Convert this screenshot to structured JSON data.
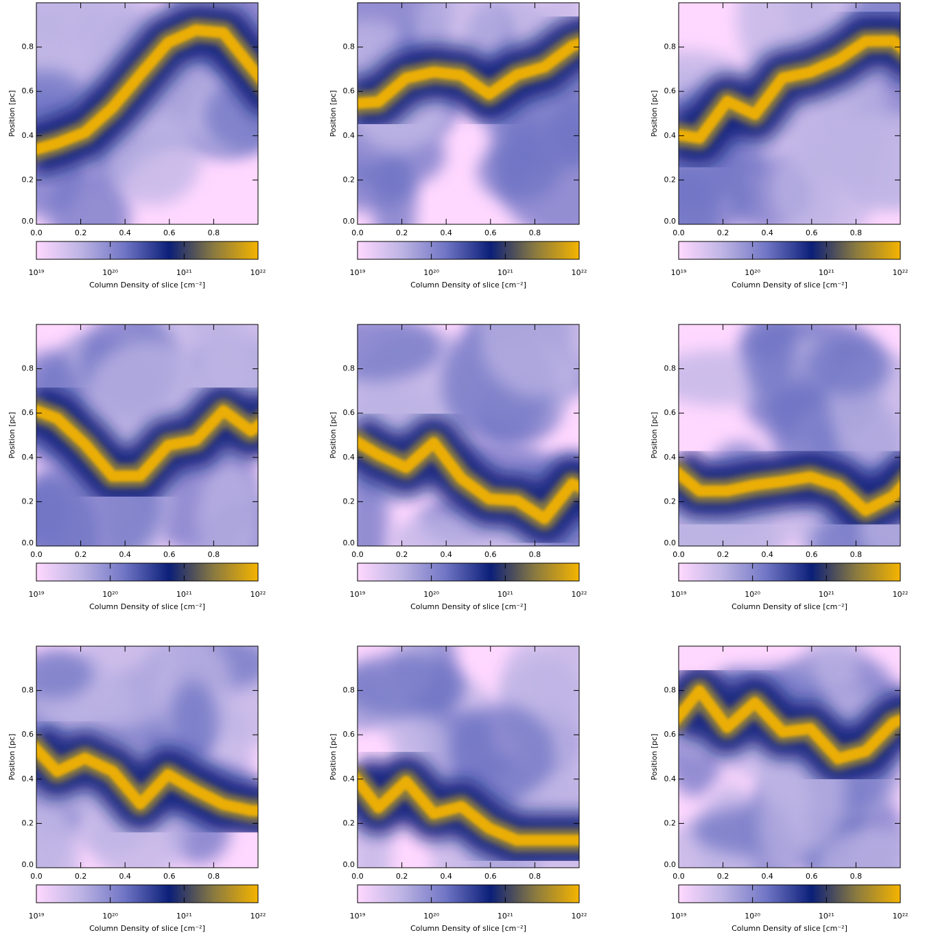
{
  "chart_data": [
    {
      "type": "heatmap",
      "ylabel": "Position [pc]",
      "xlim": [
        0,
        1
      ],
      "ylim": [
        0,
        1
      ],
      "xticks": [
        {
          "value": 0,
          "label": "0.0"
        },
        0.2,
        0.4,
        0.6,
        0.8
      ],
      "yticks": [
        {
          "value": 0,
          "label": "0.0"
        },
        0.2,
        0.4,
        0.6,
        0.8
      ],
      "colorbar": {
        "label": "Column Density of slice [cm⁻²]",
        "log": true,
        "lim": [
          1e+19,
          1e+22
        ],
        "ticks": [
          {
            "value": 1e+19,
            "label": "10¹⁹"
          },
          {
            "value": 1e+20,
            "label": "10²⁰"
          },
          {
            "value": 1e+21,
            "label": "10²¹"
          },
          {
            "value": 1e+22,
            "label": "10²²"
          }
        ],
        "colors": [
          "#ffd8ff",
          "#bdb4e4",
          "#6f74c4",
          "#0b1f78",
          "#8a7a40",
          "#f5b400"
        ]
      }
    },
    {
      "type": "heatmap",
      "ylabel": "Position [pc]",
      "xlim": [
        0,
        1
      ],
      "ylim": [
        0,
        1
      ],
      "xticks": [
        {
          "value": 0,
          "label": "0.0"
        },
        0.2,
        0.4,
        0.6,
        0.8
      ],
      "yticks": [
        {
          "value": 0,
          "label": "0.0"
        },
        0.2,
        0.4,
        0.6,
        0.8
      ],
      "colorbar": {
        "label": "Column Density of slice [cm⁻²]",
        "log": true,
        "lim": [
          1e+19,
          1e+22
        ],
        "ticks": [
          {
            "value": 1e+19,
            "label": "10¹⁹"
          },
          {
            "value": 1e+20,
            "label": "10²⁰"
          },
          {
            "value": 1e+21,
            "label": "10²¹"
          },
          {
            "value": 1e+22,
            "label": "10²²"
          }
        ],
        "colors": [
          "#ffd8ff",
          "#bdb4e4",
          "#6f74c4",
          "#0b1f78",
          "#8a7a40",
          "#f5b400"
        ]
      }
    },
    {
      "type": "heatmap",
      "ylabel": "Position [pc]",
      "xlim": [
        0,
        1
      ],
      "ylim": [
        0,
        1
      ],
      "xticks": [
        {
          "value": 0,
          "label": "0.0"
        },
        0.2,
        0.4,
        0.6,
        0.8
      ],
      "yticks": [
        {
          "value": 0,
          "label": "0.0"
        },
        0.2,
        0.4,
        0.6,
        0.8
      ],
      "colorbar": {
        "label": "Column Density of slice [cm⁻²]",
        "log": true,
        "lim": [
          1e+19,
          1e+22
        ],
        "ticks": [
          {
            "value": 1e+19,
            "label": "10¹⁹"
          },
          {
            "value": 1e+20,
            "label": "10²⁰"
          },
          {
            "value": 1e+21,
            "label": "10²¹"
          },
          {
            "value": 1e+22,
            "label": "10²²"
          }
        ],
        "colors": [
          "#ffd8ff",
          "#bdb4e4",
          "#6f74c4",
          "#0b1f78",
          "#8a7a40",
          "#f5b400"
        ]
      }
    },
    {
      "type": "heatmap",
      "ylabel": "Position [pc]",
      "xlim": [
        0,
        1
      ],
      "ylim": [
        0,
        1
      ],
      "xticks": [
        {
          "value": 0,
          "label": "0.0"
        },
        0.2,
        0.4,
        0.6,
        0.8
      ],
      "yticks": [
        {
          "value": 0,
          "label": "0.0"
        },
        0.2,
        0.4,
        0.6,
        0.8
      ],
      "colorbar": {
        "label": "Column Density of slice [cm⁻²]",
        "log": true,
        "lim": [
          1e+19,
          1e+22
        ],
        "ticks": [
          {
            "value": 1e+19,
            "label": "10¹⁹"
          },
          {
            "value": 1e+20,
            "label": "10²⁰"
          },
          {
            "value": 1e+21,
            "label": "10²¹"
          },
          {
            "value": 1e+22,
            "label": "10²²"
          }
        ],
        "colors": [
          "#ffd8ff",
          "#bdb4e4",
          "#6f74c4",
          "#0b1f78",
          "#8a7a40",
          "#f5b400"
        ]
      }
    },
    {
      "type": "heatmap",
      "ylabel": "Position [pc]",
      "xlim": [
        0,
        1
      ],
      "ylim": [
        0,
        1
      ],
      "xticks": [
        {
          "value": 0,
          "label": "0.0"
        },
        0.2,
        0.4,
        0.6,
        0.8
      ],
      "yticks": [
        {
          "value": 0,
          "label": "0.0"
        },
        0.2,
        0.4,
        0.6,
        0.8
      ],
      "colorbar": {
        "label": "Column Density of slice [cm⁻²]",
        "log": true,
        "lim": [
          1e+19,
          1e+22
        ],
        "ticks": [
          {
            "value": 1e+19,
            "label": "10¹⁹"
          },
          {
            "value": 1e+20,
            "label": "10²⁰"
          },
          {
            "value": 1e+21,
            "label": "10²¹"
          },
          {
            "value": 1e+22,
            "label": "10²²"
          }
        ],
        "colors": [
          "#ffd8ff",
          "#bdb4e4",
          "#6f74c4",
          "#0b1f78",
          "#8a7a40",
          "#f5b400"
        ]
      }
    },
    {
      "type": "heatmap",
      "ylabel": "Position [pc]",
      "xlim": [
        0,
        1
      ],
      "ylim": [
        0,
        1
      ],
      "xticks": [
        {
          "value": 0,
          "label": "0.0"
        },
        0.2,
        0.4,
        0.6,
        0.8
      ],
      "yticks": [
        {
          "value": 0,
          "label": "0.0"
        },
        0.2,
        0.4,
        0.6,
        0.8
      ],
      "colorbar": {
        "label": "Column Density of slice [cm⁻²]",
        "log": true,
        "lim": [
          1e+19,
          1e+22
        ],
        "ticks": [
          {
            "value": 1e+19,
            "label": "10¹⁹"
          },
          {
            "value": 1e+20,
            "label": "10²⁰"
          },
          {
            "value": 1e+21,
            "label": "10²¹"
          },
          {
            "value": 1e+22,
            "label": "10²²"
          }
        ],
        "colors": [
          "#ffd8ff",
          "#bdb4e4",
          "#6f74c4",
          "#0b1f78",
          "#8a7a40",
          "#f5b400"
        ]
      }
    },
    {
      "type": "heatmap",
      "ylabel": "Position [pc]",
      "xlim": [
        0,
        1
      ],
      "ylim": [
        0,
        1
      ],
      "xticks": [
        {
          "value": 0,
          "label": "0.0"
        },
        0.2,
        0.4,
        0.6,
        0.8
      ],
      "yticks": [
        {
          "value": 0,
          "label": "0.0"
        },
        0.2,
        0.4,
        0.6,
        0.8
      ],
      "colorbar": {
        "label": "Column Density of slice [cm⁻²]",
        "log": true,
        "lim": [
          1e+19,
          1e+22
        ],
        "ticks": [
          {
            "value": 1e+19,
            "label": "10¹⁹"
          },
          {
            "value": 1e+20,
            "label": "10²⁰"
          },
          {
            "value": 1e+21,
            "label": "10²¹"
          },
          {
            "value": 1e+22,
            "label": "10²²"
          }
        ],
        "colors": [
          "#ffd8ff",
          "#bdb4e4",
          "#6f74c4",
          "#0b1f78",
          "#8a7a40",
          "#f5b400"
        ]
      }
    },
    {
      "type": "heatmap",
      "ylabel": "Position [pc]",
      "xlim": [
        0,
        1
      ],
      "ylim": [
        0,
        1
      ],
      "xticks": [
        {
          "value": 0,
          "label": "0.0"
        },
        0.2,
        0.4,
        0.6,
        0.8
      ],
      "yticks": [
        {
          "value": 0,
          "label": "0.0"
        },
        0.2,
        0.4,
        0.6,
        0.8
      ],
      "colorbar": {
        "label": "Column Density of slice [cm⁻²]",
        "log": true,
        "lim": [
          1e+19,
          1e+22
        ],
        "ticks": [
          {
            "value": 1e+19,
            "label": "10¹⁹"
          },
          {
            "value": 1e+20,
            "label": "10²⁰"
          },
          {
            "value": 1e+21,
            "label": "10²¹"
          },
          {
            "value": 1e+22,
            "label": "10²²"
          }
        ],
        "colors": [
          "#ffd8ff",
          "#bdb4e4",
          "#6f74c4",
          "#0b1f78",
          "#8a7a40",
          "#f5b400"
        ]
      }
    },
    {
      "type": "heatmap",
      "ylabel": "Position [pc]",
      "xlim": [
        0,
        1
      ],
      "ylim": [
        0,
        1
      ],
      "xticks": [
        {
          "value": 0,
          "label": "0.0"
        },
        0.2,
        0.4,
        0.6,
        0.8
      ],
      "yticks": [
        {
          "value": 0,
          "label": "0.0"
        },
        0.2,
        0.4,
        0.6,
        0.8
      ],
      "colorbar": {
        "label": "Column Density of slice [cm⁻²]",
        "log": true,
        "lim": [
          1e+19,
          1e+22
        ],
        "ticks": [
          {
            "value": 1e+19,
            "label": "10¹⁹"
          },
          {
            "value": 1e+20,
            "label": "10²⁰"
          },
          {
            "value": 1e+21,
            "label": "10²¹"
          },
          {
            "value": 1e+22,
            "label": "10²²"
          }
        ],
        "colors": [
          "#ffd8ff",
          "#bdb4e4",
          "#6f74c4",
          "#0b1f78",
          "#8a7a40",
          "#f5b400"
        ]
      }
    }
  ]
}
